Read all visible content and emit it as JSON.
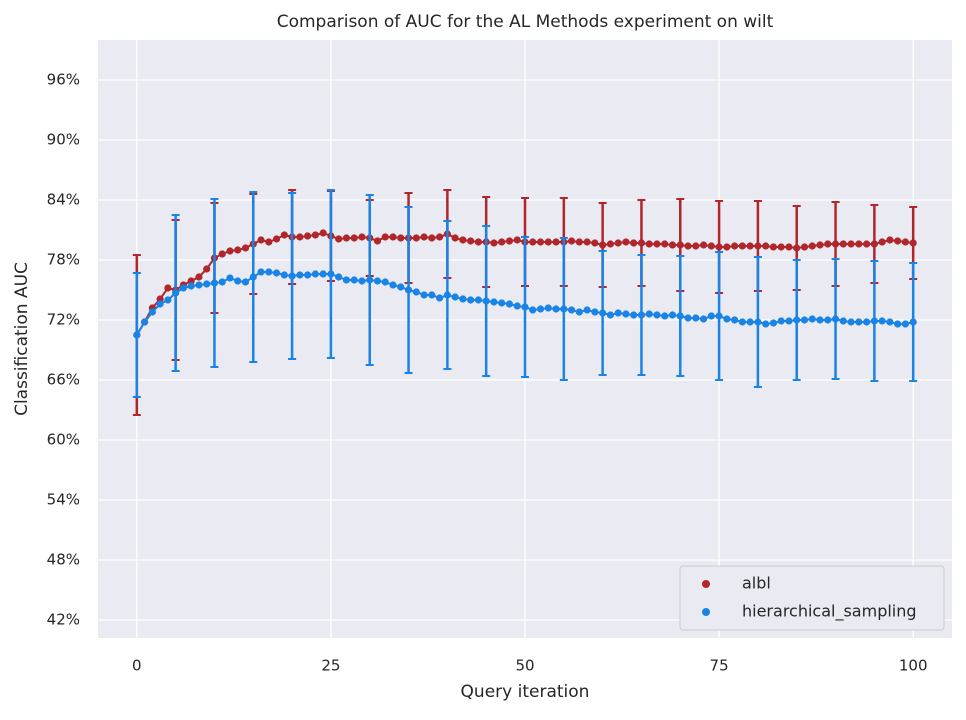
{
  "chart_data": {
    "type": "errorbar-line",
    "title": "Comparison of AUC for the AL Methods experiment on wilt",
    "x_label": "Query iteration",
    "y_label": "Classification AUC",
    "xlim": [
      -5,
      105
    ],
    "xticks": [
      0,
      25,
      50,
      75,
      100
    ],
    "ylim": [
      40.2,
      100
    ],
    "yticks": [
      {
        "value": 42,
        "label": "42%"
      },
      {
        "value": 48,
        "label": "48%"
      },
      {
        "value": 54,
        "label": "54%"
      },
      {
        "value": 60,
        "label": "60%"
      },
      {
        "value": 66,
        "label": "66%"
      },
      {
        "value": 72,
        "label": "72%"
      },
      {
        "value": 78,
        "label": "78%"
      },
      {
        "value": 84,
        "label": "84%"
      },
      {
        "value": 90,
        "label": "90%"
      },
      {
        "value": 96,
        "label": "96%"
      }
    ],
    "grid": true,
    "legend": "lower right",
    "x": [
      0,
      1,
      2,
      3,
      4,
      5,
      6,
      7,
      8,
      9,
      10,
      11,
      12,
      13,
      14,
      15,
      16,
      17,
      18,
      19,
      20,
      21,
      22,
      23,
      24,
      25,
      26,
      27,
      28,
      29,
      30,
      31,
      32,
      33,
      34,
      35,
      36,
      37,
      38,
      39,
      40,
      41,
      42,
      43,
      44,
      45,
      46,
      47,
      48,
      49,
      50,
      51,
      52,
      53,
      54,
      55,
      56,
      57,
      58,
      59,
      60,
      61,
      62,
      63,
      64,
      65,
      66,
      67,
      68,
      69,
      70,
      71,
      72,
      73,
      74,
      75,
      76,
      77,
      78,
      79,
      80,
      81,
      82,
      83,
      84,
      85,
      86,
      87,
      88,
      89,
      90,
      91,
      92,
      93,
      94,
      95,
      96,
      97,
      98,
      99,
      100
    ],
    "error_x": [
      0,
      5,
      10,
      15,
      20,
      25,
      30,
      35,
      40,
      45,
      50,
      55,
      60,
      65,
      70,
      75,
      80,
      85,
      90,
      95,
      100
    ],
    "series": [
      {
        "name": "albl",
        "color": "#b0262b",
        "values": [
          70.5,
          71.8,
          73.2,
          74.1,
          75.2,
          75.0,
          75.5,
          75.9,
          76.3,
          77.1,
          78.2,
          78.6,
          78.9,
          79.0,
          79.2,
          79.6,
          80.0,
          79.8,
          80.1,
          80.5,
          80.3,
          80.3,
          80.4,
          80.5,
          80.7,
          80.4,
          80.1,
          80.2,
          80.2,
          80.3,
          80.2,
          79.9,
          80.3,
          80.3,
          80.2,
          80.2,
          80.2,
          80.3,
          80.2,
          80.3,
          80.6,
          80.2,
          80.0,
          79.9,
          79.8,
          79.8,
          79.7,
          79.8,
          79.9,
          80.0,
          79.8,
          79.8,
          79.8,
          79.8,
          79.8,
          79.8,
          79.9,
          79.8,
          79.8,
          79.7,
          79.5,
          79.6,
          79.7,
          79.8,
          79.7,
          79.7,
          79.6,
          79.6,
          79.6,
          79.5,
          79.5,
          79.4,
          79.4,
          79.5,
          79.4,
          79.3,
          79.3,
          79.4,
          79.4,
          79.4,
          79.4,
          79.4,
          79.3,
          79.3,
          79.3,
          79.2,
          79.3,
          79.4,
          79.5,
          79.6,
          79.6,
          79.6,
          79.6,
          79.6,
          79.6,
          79.6,
          79.8,
          80.0,
          79.9,
          79.8,
          79.7
        ],
        "errors": [
          8,
          7,
          5.5,
          5,
          4.7,
          4.5,
          3.8,
          4.5,
          4.4,
          4.5,
          4.4,
          4.4,
          4.2,
          4.3,
          4.6,
          4.6,
          4.5,
          4.2,
          4.2,
          3.9,
          3.6
        ]
      },
      {
        "name": "hierarchical_sampling",
        "color": "#1a84e6",
        "values": [
          70.5,
          71.8,
          72.8,
          73.6,
          74.0,
          74.7,
          75.2,
          75.4,
          75.5,
          75.6,
          75.7,
          75.8,
          76.2,
          75.9,
          75.8,
          76.3,
          76.8,
          76.8,
          76.7,
          76.5,
          76.4,
          76.5,
          76.5,
          76.6,
          76.6,
          76.6,
          76.3,
          76.0,
          76.0,
          75.9,
          76.0,
          75.9,
          75.8,
          75.5,
          75.3,
          75.0,
          74.8,
          74.5,
          74.5,
          74.2,
          74.5,
          74.3,
          74.1,
          74.0,
          74.0,
          73.9,
          73.8,
          73.7,
          73.6,
          73.4,
          73.3,
          73.0,
          73.1,
          73.2,
          73.1,
          73.1,
          73.0,
          72.8,
          73.0,
          72.8,
          72.7,
          72.5,
          72.7,
          72.6,
          72.5,
          72.5,
          72.6,
          72.5,
          72.4,
          72.5,
          72.4,
          72.2,
          72.2,
          72.1,
          72.4,
          72.4,
          72.1,
          72.0,
          71.8,
          71.8,
          71.8,
          71.6,
          71.7,
          71.9,
          71.9,
          72.0,
          72.0,
          72.1,
          72.0,
          72.0,
          72.1,
          71.9,
          71.8,
          71.8,
          71.8,
          71.9,
          71.9,
          71.8,
          71.6,
          71.6,
          71.8
        ],
        "errors": [
          6.2,
          7.8,
          8.4,
          8.5,
          8.3,
          8.4,
          8.5,
          8.3,
          7.4,
          7.5,
          7.0,
          7.1,
          6.2,
          6.0,
          6.0,
          6.4,
          6.5,
          6.0,
          6.0,
          6.0,
          5.9
        ]
      }
    ]
  }
}
